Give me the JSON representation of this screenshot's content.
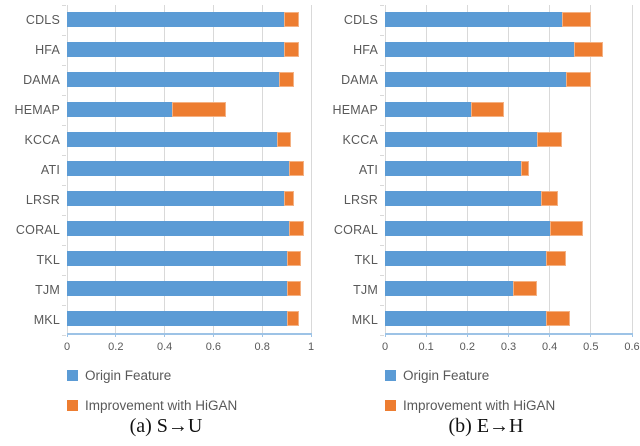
{
  "colors": {
    "origin": "#5B9BD5",
    "improvement": "#ED7D31",
    "improvement_border": "#F4B183",
    "gridline": "#D9D9D9",
    "axis_line": "#9DC3E6",
    "text": "#595959"
  },
  "legend": {
    "items": [
      {
        "label": "Origin Feature",
        "color": "#5B9BD5"
      },
      {
        "label": "Improvement with HiGAN",
        "color": "#ED7D31"
      }
    ]
  },
  "chart_data": [
    {
      "type": "bar",
      "orientation": "horizontal",
      "stacked": true,
      "caption": "(a) S→U",
      "grid": true,
      "legend_position": "bottom-left",
      "categories": [
        "CDLS",
        "HFA",
        "DAMA",
        "HEMAP",
        "KCCA",
        "ATI",
        "LRSR",
        "CORAL",
        "TKL",
        "TJM",
        "MKL"
      ],
      "series": [
        {
          "name": "Origin Feature",
          "color": "#5B9BD5",
          "values": [
            0.89,
            0.89,
            0.87,
            0.43,
            0.86,
            0.91,
            0.89,
            0.91,
            0.9,
            0.9,
            0.9
          ]
        },
        {
          "name": "Improvement with HiGAN",
          "color": "#ED7D31",
          "values": [
            0.06,
            0.06,
            0.06,
            0.22,
            0.06,
            0.06,
            0.04,
            0.06,
            0.06,
            0.06,
            0.05
          ]
        }
      ],
      "xlim": [
        0,
        1
      ],
      "xticks": [
        0,
        0.2,
        0.4,
        0.6,
        0.8,
        1
      ],
      "xtick_labels": [
        "0",
        "0.2",
        "0.4",
        "0.6",
        "0.8",
        "1"
      ]
    },
    {
      "type": "bar",
      "orientation": "horizontal",
      "stacked": true,
      "caption": "(b) E→H",
      "grid": true,
      "legend_position": "bottom-left",
      "categories": [
        "CDLS",
        "HFA",
        "DAMA",
        "HEMAP",
        "KCCA",
        "ATI",
        "LRSR",
        "CORAL",
        "TKL",
        "TJM",
        "MKL"
      ],
      "series": [
        {
          "name": "Origin Feature",
          "color": "#5B9BD5",
          "values": [
            0.43,
            0.46,
            0.44,
            0.21,
            0.37,
            0.33,
            0.38,
            0.4,
            0.39,
            0.31,
            0.39
          ]
        },
        {
          "name": "Improvement with HiGAN",
          "color": "#ED7D31",
          "values": [
            0.07,
            0.07,
            0.06,
            0.08,
            0.06,
            0.02,
            0.04,
            0.08,
            0.05,
            0.06,
            0.06
          ]
        }
      ],
      "xlim": [
        0,
        0.6
      ],
      "xticks": [
        0,
        0.1,
        0.2,
        0.3,
        0.4,
        0.5,
        0.6
      ],
      "xtick_labels": [
        "0",
        "0.1",
        "0.2",
        "0.3",
        "0.4",
        "0.5",
        "0.6"
      ]
    }
  ]
}
